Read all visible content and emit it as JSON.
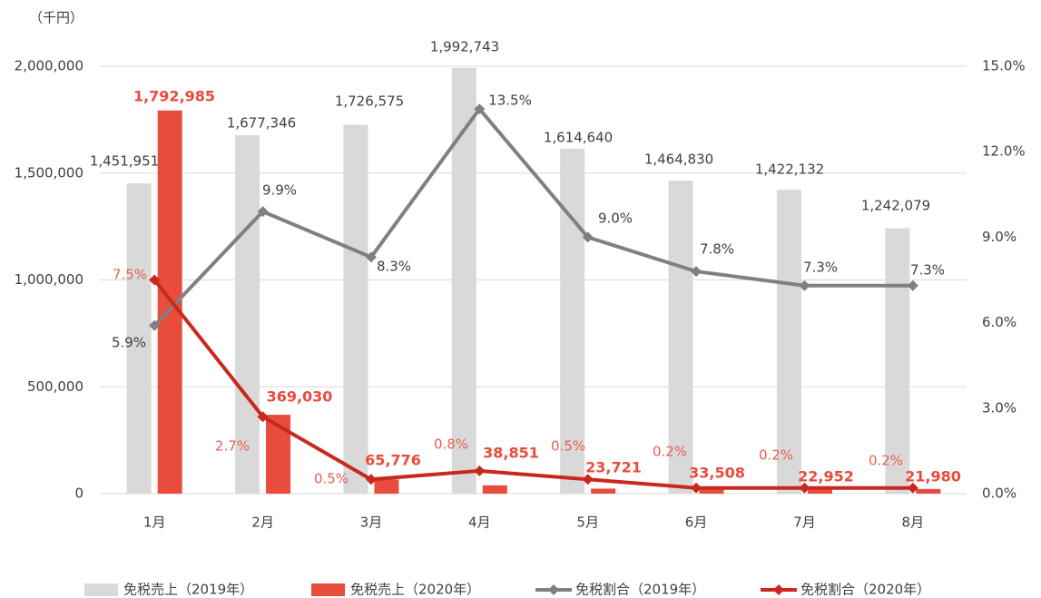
{
  "chart_data": {
    "type": "bar_line",
    "y_axis_label": "（千円）",
    "categories": [
      "1月",
      "2月",
      "3月",
      "4月",
      "5月",
      "6月",
      "7月",
      "8月"
    ],
    "ylim": [
      0,
      2000000
    ],
    "yticks": [
      0,
      {
        "value": 500000,
        "label": "500,000"
      },
      {
        "value": 1000000,
        "label": "1,000,000"
      },
      {
        "value": 1500000,
        "label": "1,500,000"
      },
      {
        "value": 2000000,
        "label": "2,000,000"
      }
    ],
    "y2lim": [
      0,
      15
    ],
    "y2ticks": [
      {
        "value": 0,
        "label": "0.0%"
      },
      {
        "value": 3,
        "label": "3.0%"
      },
      {
        "value": 6,
        "label": "6.0%"
      },
      {
        "value": 9,
        "label": "9.0%"
      },
      {
        "value": 12,
        "label": "12.0%"
      },
      {
        "value": 15,
        "label": "15.0%"
      }
    ],
    "grid": true,
    "legend": "bottom",
    "series": [
      {
        "name": "免税売上（2019年）",
        "type": "bar",
        "color": "#d9d9d9",
        "values": [
          1451951,
          1677346,
          1726575,
          1992743,
          1614640,
          1464830,
          1422132,
          1242079
        ],
        "value_labels": [
          "1,451,951",
          "1,677,346",
          "1,726,575",
          "1,992,743",
          "1,614,640",
          "1,464,830",
          "1,422,132",
          "1,242,079"
        ]
      },
      {
        "name": "免税売上（2020年）",
        "type": "bar",
        "color": "#e84c3d",
        "values": [
          1792985,
          369030,
          65776,
          38851,
          23721,
          33508,
          22952,
          21980
        ],
        "value_labels": [
          "1,792,985",
          "369,030",
          "65,776",
          "38,851",
          "23,721",
          "33,508",
          "22,952",
          "21,980"
        ]
      },
      {
        "name": "免税割合（2019年）",
        "type": "line",
        "axis": "y2",
        "color": "#808080",
        "values": [
          5.9,
          9.9,
          8.3,
          13.5,
          9.0,
          7.8,
          7.3,
          7.3
        ],
        "value_labels": [
          "5.9%",
          "9.9%",
          "8.3%",
          "13.5%",
          "9.0%",
          "7.8%",
          "7.3%",
          "7.3%"
        ]
      },
      {
        "name": "免税割合（2020年）",
        "type": "line",
        "axis": "y2",
        "color": "#c9281e",
        "values": [
          7.5,
          2.7,
          0.5,
          0.8,
          0.5,
          0.2,
          0.2,
          0.2
        ],
        "value_labels": [
          "7.5%",
          "2.7%",
          "0.5%",
          "0.8%",
          "0.5%",
          "0.2%",
          "0.2%",
          "0.2%"
        ]
      }
    ]
  }
}
